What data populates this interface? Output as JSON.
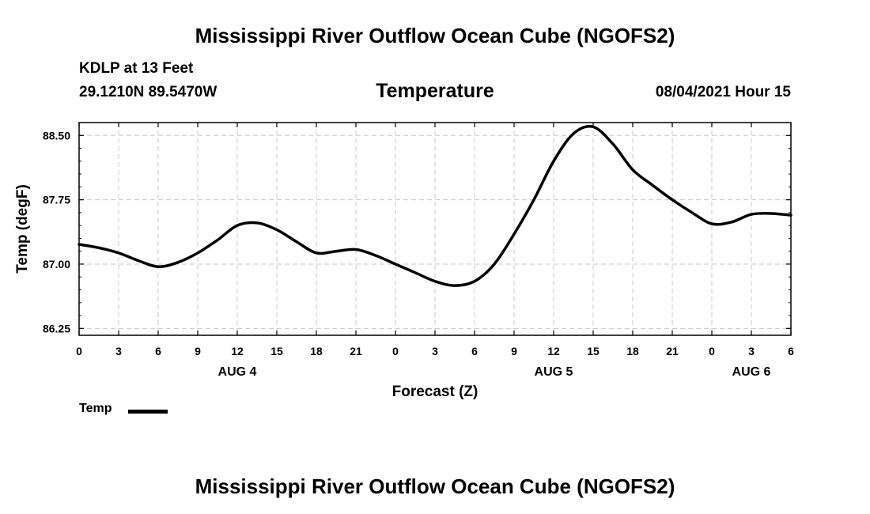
{
  "header": {
    "title": "Mississippi River Outflow Ocean Cube (NGOFS2)",
    "station": "KDLP at 13 Feet",
    "coords": "29.1210N  89.5470W",
    "variable": "Temperature",
    "timestamp": "08/04/2021 Hour 15"
  },
  "footer": {
    "title": "Mississippi River Outflow Ocean Cube (NGOFS2)"
  },
  "legend": {
    "label": "Temp",
    "color": "#000000"
  },
  "chart_data": {
    "type": "line",
    "title": "Temperature",
    "xlabel": "Forecast (Z)",
    "ylabel": "Temp (degF)",
    "xlim": [
      0,
      54
    ],
    "ylim": [
      86.17,
      88.65
    ],
    "grid": true,
    "x_ticks": [
      0,
      3,
      6,
      9,
      12,
      15,
      18,
      21,
      24,
      27,
      30,
      33,
      36,
      39,
      42,
      45,
      48,
      51,
      54
    ],
    "x_tick_labels": [
      "0",
      "3",
      "6",
      "9",
      "12",
      "15",
      "18",
      "21",
      "0",
      "3",
      "6",
      "9",
      "12",
      "15",
      "18",
      "21",
      "0",
      "3",
      "6"
    ],
    "date_labels": [
      {
        "x": 12,
        "label": "AUG 4"
      },
      {
        "x": 36,
        "label": "AUG 5"
      },
      {
        "x": 51,
        "label": "AUG 6"
      }
    ],
    "y_ticks": [
      86.25,
      87.0,
      87.75,
      88.5
    ],
    "y_tick_labels": [
      "86.25",
      "87.00",
      "87.75",
      "88.50"
    ],
    "series": [
      {
        "name": "Temp",
        "x": [
          0,
          1.5,
          3,
          4.5,
          6,
          7.5,
          9,
          10.5,
          12,
          13.5,
          15,
          16.5,
          18,
          19.5,
          21,
          22.5,
          24,
          25.5,
          27,
          28.5,
          30,
          31.5,
          33,
          34.5,
          36,
          37.5,
          39,
          40.5,
          42,
          43.5,
          45,
          46.5,
          48,
          49.5,
          51,
          52.5,
          54
        ],
        "values": [
          87.23,
          87.19,
          87.13,
          87.04,
          86.97,
          87.02,
          87.13,
          87.28,
          87.45,
          87.48,
          87.4,
          87.26,
          87.13,
          87.15,
          87.17,
          87.1,
          87.0,
          86.9,
          86.8,
          86.75,
          86.8,
          87.0,
          87.35,
          87.75,
          88.2,
          88.52,
          88.6,
          88.4,
          88.1,
          87.92,
          87.75,
          87.6,
          87.47,
          87.49,
          87.58,
          87.59,
          87.57
        ]
      }
    ]
  }
}
